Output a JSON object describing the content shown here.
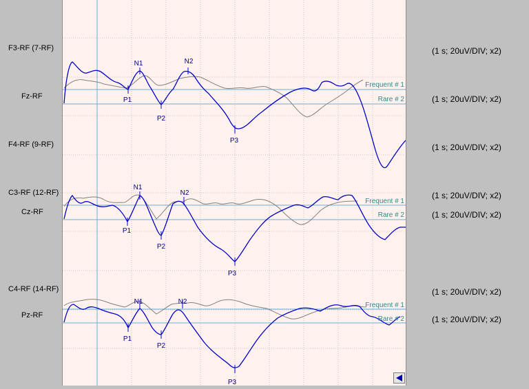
{
  "channels": [
    {
      "name": "F3-RF (7-RF)",
      "scale": "(1 s; 20uV/DIV; x2)"
    },
    {
      "name": "Fz-RF",
      "scale": "(1 s; 20uV/DIV; x2)"
    },
    {
      "name": "F4-RF (9-RF)",
      "scale": "(1 s; 20uV/DIV; x2)"
    },
    {
      "name": "C3-RF (12-RF)",
      "scale": "(1 s; 20uV/DIV; x2)"
    },
    {
      "name": "Cz-RF",
      "scale": "(1 s; 20uV/DIV; x2)"
    },
    {
      "name": "C4-RF (14-RF)",
      "scale": "(1 s; 20uV/DIV; x2)"
    },
    {
      "name": "Pz-RF",
      "scale": "(1 s; 20uV/DIV; x2)"
    }
  ],
  "traces": {
    "frequent_label": "Frequent # 1",
    "rare_label": "Rare # 2",
    "frequent_color": "#808080",
    "rare_color": "#0000cc",
    "baseline_color": "#6aaed6"
  },
  "peak_labels": [
    "N1",
    "N2",
    "P1",
    "P2",
    "P3"
  ],
  "controls": {
    "scroll_left_icon": "left-arrow-icon"
  }
}
